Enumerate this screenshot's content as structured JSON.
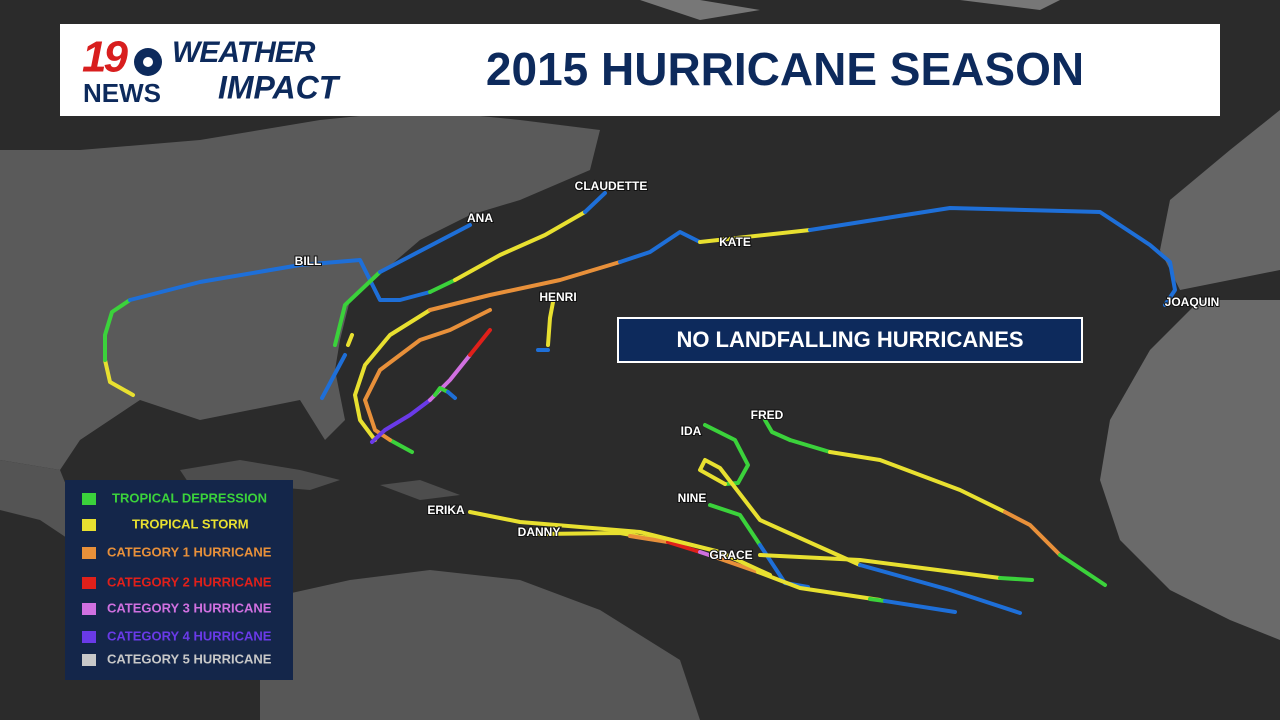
{
  "header": {
    "logo_number": "19",
    "logo_network": "NEWS",
    "brand_top": "WEATHER",
    "brand_bottom": "IMPACT",
    "title": "2015 HURRICANE SEASON"
  },
  "banner": "NO LANDFALLING HURRICANES",
  "storms": [
    {
      "name": "CLAUDETTE"
    },
    {
      "name": "ANA"
    },
    {
      "name": "BILL"
    },
    {
      "name": "KATE"
    },
    {
      "name": "HENRI"
    },
    {
      "name": "JOAQUIN"
    },
    {
      "name": "FRED"
    },
    {
      "name": "IDA"
    },
    {
      "name": "NINE"
    },
    {
      "name": "ERIKA"
    },
    {
      "name": "DANNY"
    },
    {
      "name": "GRACE"
    }
  ],
  "legend": [
    {
      "label": "TROPICAL DEPRESSION",
      "color": "#3bd23b"
    },
    {
      "label": "TROPICAL STORM",
      "color": "#e8e030"
    },
    {
      "label": "CATEGORY 1 HURRICANE",
      "color": "#e8903a"
    },
    {
      "label": "CATEGORY 2 HURRICANE",
      "color": "#e0201a"
    },
    {
      "label": "CATEGORY 3 HURRICANE",
      "color": "#d070e0"
    },
    {
      "label": "CATEGORY 4 HURRICANE",
      "color": "#6a3ae8"
    },
    {
      "label": "CATEGORY 5 HURRICANE",
      "color": "#c8c8c8"
    }
  ]
}
